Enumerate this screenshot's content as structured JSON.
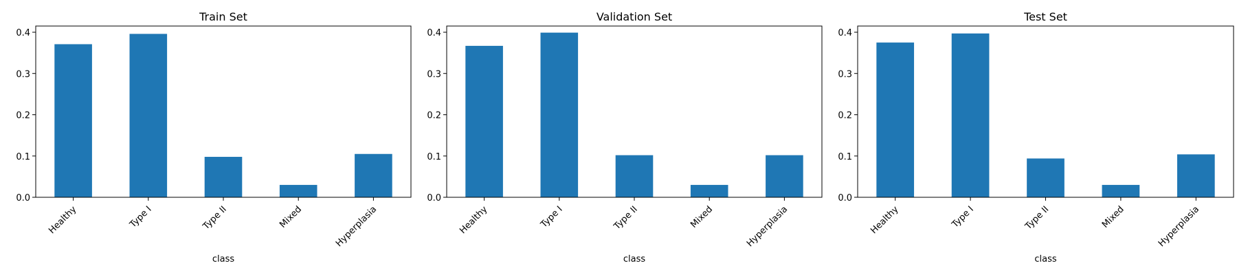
{
  "chart_data": [
    {
      "type": "bar",
      "title": "Train Set",
      "xlabel": "class",
      "ylabel": "",
      "categories": [
        "Healthy",
        "Type I",
        "Type II",
        "Mixed",
        "Hyperplasia"
      ],
      "values": [
        0.371,
        0.396,
        0.098,
        0.03,
        0.105
      ],
      "ylim": [
        0,
        0.415
      ],
      "yticks": [
        "0.0",
        "0.1",
        "0.2",
        "0.3",
        "0.4"
      ],
      "color": "#1f77b4",
      "grid": false,
      "legend": "none"
    },
    {
      "type": "bar",
      "title": "Validation Set",
      "xlabel": "class",
      "ylabel": "",
      "categories": [
        "Healthy",
        "Type I",
        "Type II",
        "Mixed",
        "Hyperplasia"
      ],
      "values": [
        0.367,
        0.399,
        0.102,
        0.03,
        0.102
      ],
      "ylim": [
        0,
        0.415
      ],
      "yticks": [
        "0.0",
        "0.1",
        "0.2",
        "0.3",
        "0.4"
      ],
      "color": "#1f77b4",
      "grid": false,
      "legend": "none"
    },
    {
      "type": "bar",
      "title": "Test Set",
      "xlabel": "class",
      "ylabel": "",
      "categories": [
        "Healthy",
        "Type I",
        "Type II",
        "Mixed",
        "Hyperplasia"
      ],
      "values": [
        0.375,
        0.397,
        0.094,
        0.03,
        0.104
      ],
      "ylim": [
        0,
        0.415
      ],
      "yticks": [
        "0.0",
        "0.1",
        "0.2",
        "0.3",
        "0.4"
      ],
      "color": "#1f77b4",
      "grid": false,
      "legend": "none"
    }
  ]
}
